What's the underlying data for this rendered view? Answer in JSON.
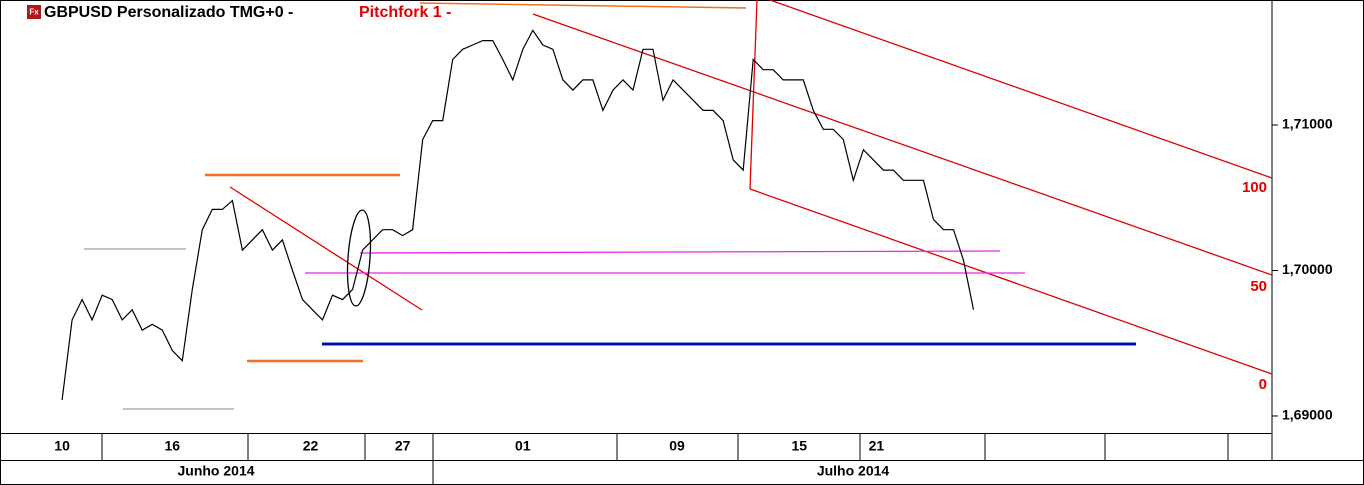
{
  "chart_data": {
    "type": "line",
    "icon_label": "Fx",
    "title": "GBPUSD Personalizado TMG+0 -",
    "annotation": "Pitchfork 1 -",
    "series": [
      {
        "name": "GBPUSD",
        "color": "#000000",
        "values": [
          1.6911,
          1.6966,
          1.698,
          1.6966,
          1.6983,
          1.698,
          1.6966,
          1.6973,
          1.6959,
          1.6963,
          1.6959,
          1.6945,
          1.6938,
          1.6987,
          1.7028,
          1.7042,
          1.7042,
          1.7048,
          1.7014,
          1.7021,
          1.7028,
          1.7014,
          1.7021,
          1.7,
          1.698,
          1.6973,
          1.6966,
          1.6983,
          1.698,
          1.6987,
          1.7014,
          1.7021,
          1.7028,
          1.7028,
          1.7024,
          1.7028,
          1.709,
          1.7103,
          1.7103,
          1.7145,
          1.7152,
          1.7155,
          1.7158,
          1.7158,
          1.7145,
          1.7131,
          1.7152,
          1.7165,
          1.7155,
          1.7152,
          1.7131,
          1.7124,
          1.7131,
          1.7131,
          1.711,
          1.7124,
          1.7131,
          1.7124,
          1.7152,
          1.7152,
          1.7117,
          1.7131,
          1.7124,
          1.7117,
          1.711,
          1.711,
          1.7103,
          1.7076,
          1.7069,
          1.7145,
          1.7138,
          1.7138,
          1.7131,
          1.7131,
          1.7131,
          1.711,
          1.7097,
          1.7097,
          1.709,
          1.7062,
          1.7083,
          1.7076,
          1.7069,
          1.7069,
          1.7062,
          1.7062,
          1.7062,
          1.7035,
          1.7028,
          1.7028,
          1.7007,
          1.6973
        ]
      }
    ],
    "xlim": [
      -6.2,
      120.8
    ],
    "xticks": [
      {
        "value": 0,
        "label": "10"
      },
      {
        "value": 11,
        "label": "16"
      },
      {
        "value": 24.8,
        "label": "22"
      },
      {
        "value": 34,
        "label": "27"
      },
      {
        "value": 46,
        "label": "01"
      },
      {
        "value": 61.4,
        "label": "09"
      },
      {
        "value": 73.6,
        "label": "15"
      },
      {
        "value": 81.3,
        "label": "21"
      }
    ],
    "month_labels": [
      "Junho 2014",
      "Julho 2014"
    ],
    "ylim": [
      1.68883,
      1.71859
    ],
    "yticks": [
      {
        "value": 1.69,
        "label": "1,69000"
      },
      {
        "value": 1.7,
        "label": "1,70000"
      },
      {
        "value": 1.71,
        "label": "1,71000"
      }
    ],
    "pitchfork_levels": [
      100,
      50,
      0
    ]
  }
}
